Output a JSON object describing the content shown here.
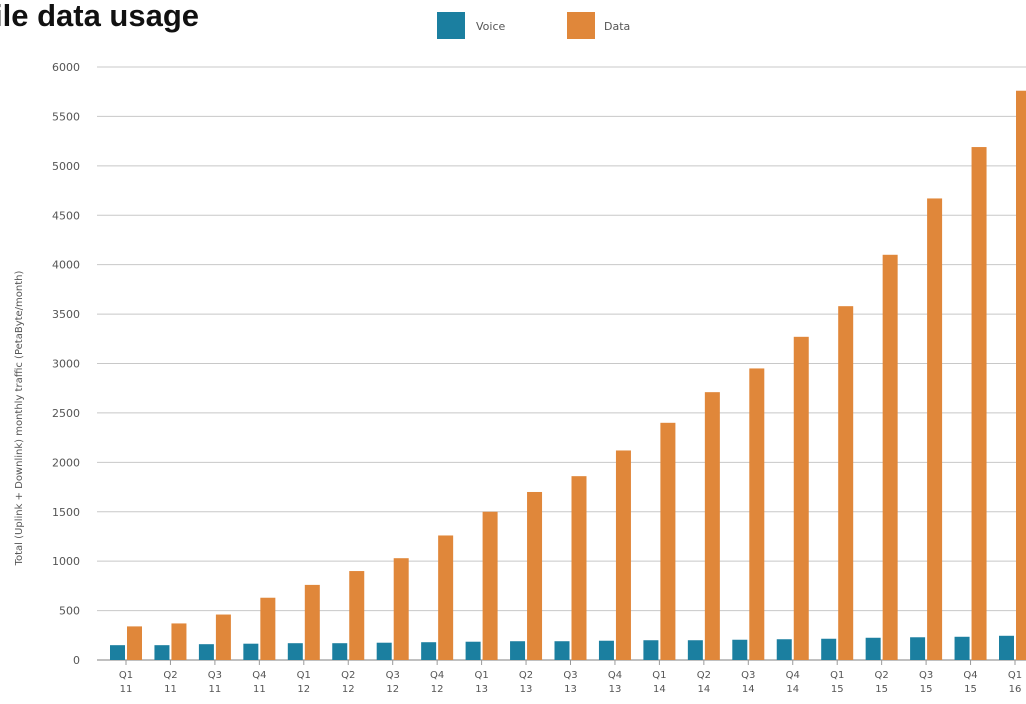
{
  "chart_data": {
    "type": "bar",
    "title": "ile data usage",
    "xlabel": "",
    "ylabel": "Total (Uplink + Downlink) monthly traffic (PetaByte/month)",
    "ylim": [
      0,
      6000
    ],
    "yticks": [
      "0",
      "500",
      "1000",
      "1500",
      "2000",
      "2500",
      "3000",
      "3500",
      "4000",
      "4500",
      "5000",
      "5500",
      "6000"
    ],
    "grid": true,
    "legend_position": "top-center",
    "categories": [
      [
        "Q1",
        "11"
      ],
      [
        "Q2",
        "11"
      ],
      [
        "Q3",
        "11"
      ],
      [
        "Q4",
        "11"
      ],
      [
        "Q1",
        "12"
      ],
      [
        "Q2",
        "12"
      ],
      [
        "Q3",
        "12"
      ],
      [
        "Q4",
        "12"
      ],
      [
        "Q1",
        "13"
      ],
      [
        "Q2",
        "13"
      ],
      [
        "Q3",
        "13"
      ],
      [
        "Q4",
        "13"
      ],
      [
        "Q1",
        "14"
      ],
      [
        "Q2",
        "14"
      ],
      [
        "Q3",
        "14"
      ],
      [
        "Q4",
        "14"
      ],
      [
        "Q1",
        "15"
      ],
      [
        "Q2",
        "15"
      ],
      [
        "Q3",
        "15"
      ],
      [
        "Q4",
        "15"
      ],
      [
        "Q1",
        "16"
      ]
    ],
    "series": [
      {
        "name": "Voice",
        "color": "#1b7fa0",
        "values": [
          150,
          150,
          160,
          165,
          170,
          170,
          175,
          180,
          185,
          190,
          190,
          195,
          200,
          200,
          205,
          210,
          215,
          225,
          230,
          235,
          245
        ]
      },
      {
        "name": "Data",
        "color": "#e0873a",
        "values": [
          340,
          370,
          460,
          630,
          760,
          900,
          1030,
          1260,
          1500,
          1700,
          1860,
          2120,
          2400,
          2710,
          2950,
          3270,
          3580,
          4100,
          4670,
          5190,
          5760
        ]
      }
    ]
  }
}
